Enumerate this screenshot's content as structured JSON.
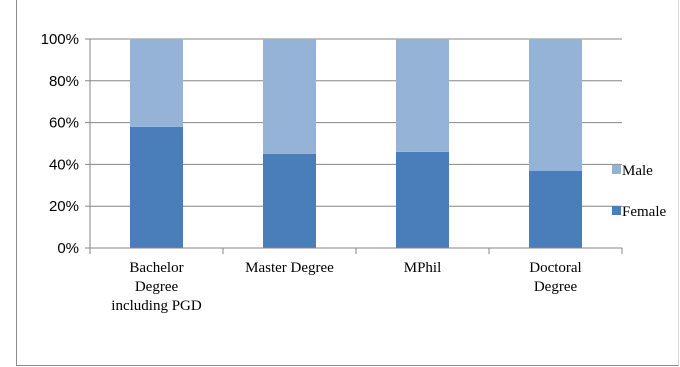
{
  "chart_data": {
    "type": "bar",
    "stacked": true,
    "categories": [
      [
        "Bachelor",
        "Degree",
        "including PGD"
      ],
      [
        "Master Degree"
      ],
      [
        "MPhil"
      ],
      [
        "Doctoral",
        "Degree"
      ]
    ],
    "series": [
      {
        "name": "Female",
        "values": [
          58,
          45,
          46,
          37
        ],
        "color": "#4a7ebb"
      },
      {
        "name": "Male",
        "values": [
          42,
          55,
          54,
          63
        ],
        "color": "#95b3d7"
      }
    ],
    "y_ticks": [
      "0%",
      "20%",
      "40%",
      "60%",
      "80%",
      "100%"
    ],
    "ylim": [
      0,
      100
    ],
    "grid": true,
    "legend_position": "right",
    "legend_order": [
      "Male",
      "Female"
    ],
    "colors": {
      "grid": "#868686",
      "axis": "#868686"
    }
  }
}
